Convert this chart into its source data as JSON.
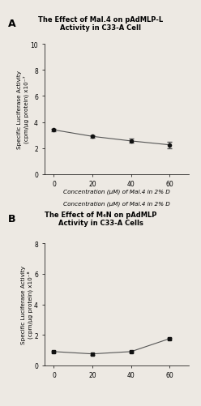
{
  "panel_A": {
    "title_line1": "The Effect of Mal.4 on pAdMLP-L",
    "title_line2": "Activity in C33-A Cell",
    "xlabel": "Concentration (μM) of Mal.4 in 2% D",
    "ylabel": "Specific Luciferase Activity\n(cpm/μg protein) x10⁻⁷",
    "x": [
      0,
      20,
      40,
      60
    ],
    "y": [
      3.4,
      2.9,
      2.55,
      2.25
    ],
    "yerr": [
      0.1,
      0.1,
      0.15,
      0.25
    ],
    "xlim": [
      -5,
      70
    ],
    "ylim": [
      0,
      10
    ],
    "yticks": [
      0,
      2,
      4,
      6,
      8,
      10
    ],
    "xticks": [
      0,
      20,
      40,
      60
    ]
  },
  "panel_B": {
    "title_line1": "The Effect of M₄N on pAdMLP",
    "title_line2": "Activity in C33-A Cells",
    "xlabel": "",
    "ylabel": "Specific Luciferase Activity\n(cpm/μg protein) x10⁻⁸",
    "x": [
      0,
      20,
      40,
      60
    ],
    "y": [
      0.9,
      0.75,
      0.9,
      1.75
    ],
    "yerr": [
      0.05,
      0.05,
      0.05,
      0.05
    ],
    "xlim": [
      -5,
      70
    ],
    "ylim": [
      0,
      8
    ],
    "yticks": [
      0,
      2,
      4,
      6,
      8
    ],
    "xticks": [
      0,
      20,
      40,
      60
    ]
  },
  "label_A": "A",
  "label_B": "B",
  "bg_color": "#ede9e3",
  "plot_bg": "#ede9e3",
  "line_color": "#555555",
  "marker_color": "#111111",
  "title_fontsize": 6.0,
  "label_fontsize": 9,
  "axis_fontsize": 5.2,
  "tick_fontsize": 5.5
}
